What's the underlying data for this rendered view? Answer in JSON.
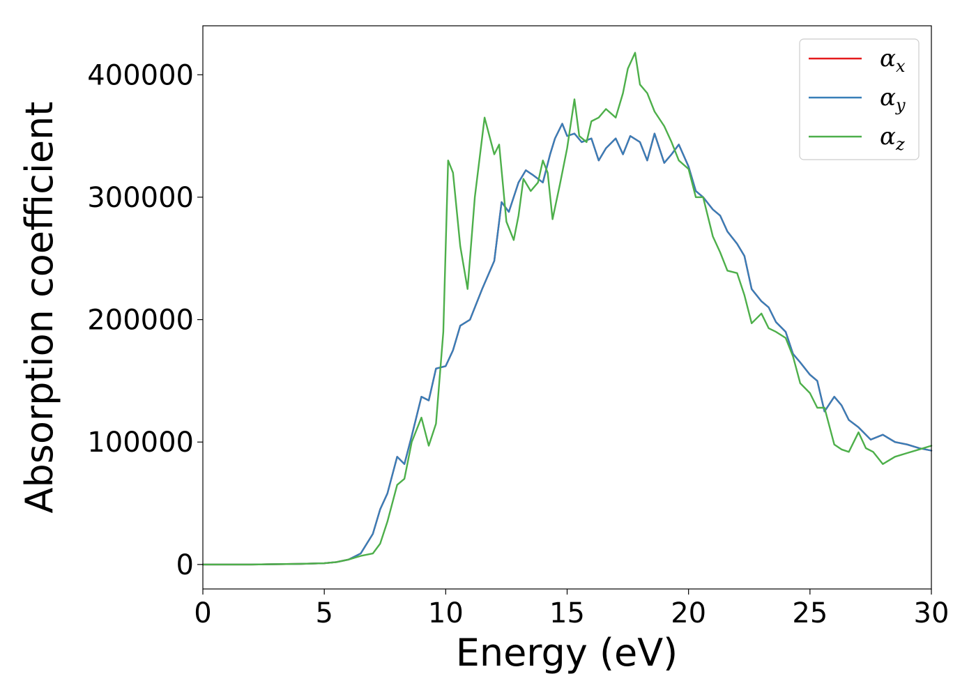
{
  "chart_data": {
    "type": "line",
    "title": "",
    "xlabel": "Energy (eV)",
    "ylabel": "Absorption coefficient",
    "xlim": [
      0,
      30
    ],
    "ylim": [
      -20000,
      440000
    ],
    "xticks": [
      0,
      5,
      10,
      15,
      20,
      25,
      30
    ],
    "yticks": [
      0,
      100000,
      200000,
      300000,
      400000
    ],
    "xtick_labels": [
      "0",
      "5",
      "10",
      "15",
      "20",
      "25",
      "30"
    ],
    "ytick_labels": [
      "0",
      "100000",
      "200000",
      "300000",
      "400000"
    ],
    "grid": false,
    "legend_position": "top-right",
    "series": [
      {
        "name": "αx",
        "symbol": "α",
        "subscript": "x",
        "color": "#e41a1c",
        "x": [
          0,
          2,
          4,
          5,
          5.5,
          6,
          6.5,
          7,
          7.3,
          7.6,
          8,
          8.3,
          8.6,
          9,
          9.3,
          9.6,
          10,
          10.3,
          10.6,
          11,
          11.5,
          12,
          12.3,
          12.6,
          13,
          13.3,
          13.6,
          14,
          14.3,
          14.5,
          14.8,
          15,
          15.3,
          15.6,
          16,
          16.3,
          16.6,
          17,
          17.3,
          17.6,
          18,
          18.3,
          18.6,
          19,
          19.3,
          19.6,
          20,
          20.3,
          20.6,
          21,
          21.3,
          21.6,
          22,
          22.3,
          22.6,
          23,
          23.3,
          23.6,
          24,
          24.3,
          24.6,
          25,
          25.3,
          25.6,
          26,
          26.3,
          26.6,
          27,
          27.5,
          28,
          28.5,
          29,
          29.5,
          30
        ],
        "values": [
          0,
          0,
          500,
          1000,
          2000,
          4000,
          9000,
          25000,
          45000,
          58000,
          88000,
          82000,
          105000,
          137000,
          134000,
          160000,
          162000,
          175000,
          195000,
          200000,
          225000,
          248000,
          296000,
          288000,
          312000,
          322000,
          318000,
          312000,
          335000,
          348000,
          360000,
          350000,
          352000,
          345000,
          348000,
          330000,
          340000,
          348000,
          335000,
          350000,
          345000,
          330000,
          352000,
          328000,
          335000,
          343000,
          325000,
          305000,
          300000,
          290000,
          285000,
          272000,
          262000,
          252000,
          225000,
          215000,
          210000,
          198000,
          190000,
          172000,
          165000,
          155000,
          150000,
          125000,
          137000,
          130000,
          118000,
          112000,
          102000,
          106000,
          100000,
          98000,
          95000,
          93000
        ]
      },
      {
        "name": "αy",
        "symbol": "α",
        "subscript": "y",
        "color": "#377eb8",
        "x": [
          0,
          2,
          4,
          5,
          5.5,
          6,
          6.5,
          7,
          7.3,
          7.6,
          8,
          8.3,
          8.6,
          9,
          9.3,
          9.6,
          10,
          10.3,
          10.6,
          11,
          11.5,
          12,
          12.3,
          12.6,
          13,
          13.3,
          13.6,
          14,
          14.3,
          14.5,
          14.8,
          15,
          15.3,
          15.6,
          16,
          16.3,
          16.6,
          17,
          17.3,
          17.6,
          18,
          18.3,
          18.6,
          19,
          19.3,
          19.6,
          20,
          20.3,
          20.6,
          21,
          21.3,
          21.6,
          22,
          22.3,
          22.6,
          23,
          23.3,
          23.6,
          24,
          24.3,
          24.6,
          25,
          25.3,
          25.6,
          26,
          26.3,
          26.6,
          27,
          27.5,
          28,
          28.5,
          29,
          29.5,
          30
        ],
        "values": [
          0,
          0,
          500,
          1000,
          2000,
          4000,
          9000,
          25000,
          45000,
          58000,
          88000,
          82000,
          105000,
          137000,
          134000,
          160000,
          162000,
          175000,
          195000,
          200000,
          225000,
          248000,
          296000,
          288000,
          312000,
          322000,
          318000,
          312000,
          335000,
          348000,
          360000,
          350000,
          352000,
          345000,
          348000,
          330000,
          340000,
          348000,
          335000,
          350000,
          345000,
          330000,
          352000,
          328000,
          335000,
          343000,
          325000,
          305000,
          300000,
          290000,
          285000,
          272000,
          262000,
          252000,
          225000,
          215000,
          210000,
          198000,
          190000,
          172000,
          165000,
          155000,
          150000,
          125000,
          137000,
          130000,
          118000,
          112000,
          102000,
          106000,
          100000,
          98000,
          95000,
          93000
        ]
      },
      {
        "name": "αz",
        "symbol": "α",
        "subscript": "z",
        "color": "#4daf4a",
        "x": [
          0,
          2,
          4,
          5,
          5.5,
          6,
          6.5,
          7,
          7.3,
          7.6,
          8,
          8.3,
          8.6,
          9,
          9.3,
          9.6,
          9.9,
          10.1,
          10.3,
          10.6,
          10.9,
          11.2,
          11.6,
          12,
          12.2,
          12.5,
          12.8,
          13,
          13.2,
          13.5,
          13.8,
          14,
          14.2,
          14.4,
          14.7,
          15,
          15.3,
          15.5,
          15.8,
          16,
          16.3,
          16.6,
          17,
          17.3,
          17.5,
          17.8,
          18,
          18.3,
          18.6,
          19,
          19.3,
          19.6,
          20,
          20.3,
          20.6,
          21,
          21.3,
          21.6,
          22,
          22.3,
          22.6,
          23,
          23.3,
          23.6,
          24,
          24.3,
          24.6,
          25,
          25.3,
          25.6,
          26,
          26.3,
          26.6,
          27,
          27.3,
          27.6,
          28,
          28.5,
          29,
          29.5,
          30
        ],
        "values": [
          0,
          0,
          500,
          1000,
          2000,
          4000,
          7000,
          9000,
          17000,
          35000,
          65000,
          70000,
          100000,
          120000,
          97000,
          115000,
          190000,
          330000,
          320000,
          260000,
          225000,
          300000,
          365000,
          335000,
          343000,
          280000,
          265000,
          285000,
          315000,
          305000,
          312000,
          330000,
          320000,
          282000,
          310000,
          340000,
          380000,
          350000,
          345000,
          362000,
          365000,
          372000,
          365000,
          385000,
          405000,
          418000,
          392000,
          385000,
          370000,
          358000,
          345000,
          330000,
          323000,
          300000,
          300000,
          268000,
          255000,
          240000,
          238000,
          220000,
          197000,
          205000,
          193000,
          190000,
          185000,
          170000,
          148000,
          140000,
          128000,
          128000,
          98000,
          94000,
          92000,
          108000,
          95000,
          92000,
          82000,
          88000,
          91000,
          94000,
          97000
        ]
      }
    ]
  }
}
